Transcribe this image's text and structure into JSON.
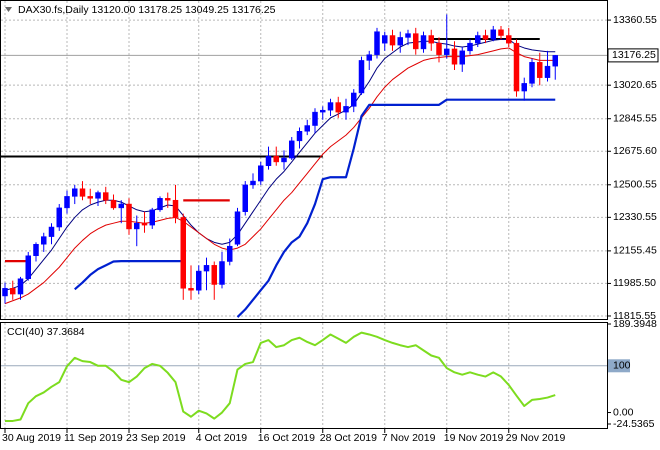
{
  "chart_data": {
    "type": "candlestick",
    "title": "DAX30.fs,Daily",
    "header_values": [
      "13120.00",
      "13178.25",
      "13049.25",
      "13176.25"
    ],
    "categories": [
      "30 Aug 2019",
      null,
      null,
      null,
      null,
      null,
      null,
      null,
      "11 Sep 2019",
      null,
      null,
      null,
      null,
      null,
      null,
      null,
      "23 Sep 2019",
      null,
      null,
      null,
      null,
      null,
      null,
      null,
      null,
      "4 Oct 2019",
      null,
      null,
      null,
      null,
      null,
      null,
      null,
      "16 Oct 2019",
      null,
      null,
      null,
      null,
      null,
      null,
      null,
      "28 Oct 2019",
      null,
      null,
      null,
      null,
      null,
      null,
      null,
      "7 Nov 2019",
      null,
      null,
      null,
      null,
      null,
      null,
      null,
      "19 Nov 2019",
      null,
      null,
      null,
      null,
      null,
      null,
      null,
      "29 Nov 2019",
      null,
      null,
      null,
      null,
      null,
      null
    ],
    "open": [
      11920,
      11960,
      11930,
      12010,
      12130,
      12190,
      12230,
      12280,
      12380,
      12440,
      12480,
      12440,
      12430,
      12460,
      12420,
      12380,
      12400,
      12270,
      12300,
      12290,
      12370,
      12430,
      12420,
      12330,
      11960,
      11950,
      12050,
      12080,
      11980,
      12100,
      12190,
      12360,
      12500,
      12520,
      12600,
      12650,
      12620,
      12640,
      12730,
      12780,
      12810,
      12880,
      12890,
      12930,
      12880,
      12910,
      12980,
      13150,
      13180,
      13240,
      13280,
      13230,
      13270,
      13290,
      13210,
      13280,
      13240,
      13180,
      13210,
      13130,
      13200,
      13240,
      13280,
      13260,
      13310,
      13280,
      13240,
      12990,
      13030,
      13140,
      13060,
      13120
    ],
    "high": [
      11990,
      12000,
      12020,
      12150,
      12200,
      12250,
      12300,
      12400,
      12470,
      12500,
      12520,
      12480,
      12470,
      12490,
      12450,
      12420,
      12430,
      12340,
      12360,
      12380,
      12440,
      12460,
      12500,
      12350,
      12080,
      12080,
      12120,
      12100,
      12150,
      12220,
      12380,
      12520,
      12560,
      12620,
      12700,
      12700,
      12680,
      12750,
      12800,
      12840,
      12900,
      12910,
      12950,
      12960,
      12950,
      13000,
      13170,
      13200,
      13320,
      13300,
      13310,
      13300,
      13310,
      13320,
      13300,
      13310,
      13270,
      13390,
      13250,
      13220,
      13260,
      13300,
      13310,
      13330,
      13330,
      13320,
      13260,
      13060,
      13160,
      13190,
      13200,
      13178.25
    ],
    "low": [
      11880,
      11900,
      11900,
      12000,
      12100,
      12150,
      12190,
      12260,
      12350,
      12400,
      12420,
      12400,
      12390,
      12400,
      12370,
      12300,
      12240,
      12180,
      12250,
      12270,
      12360,
      12380,
      12300,
      11900,
      11900,
      11930,
      11950,
      11900,
      11960,
      12080,
      12180,
      12340,
      12480,
      12500,
      12580,
      12600,
      12580,
      12630,
      12690,
      12760,
      12770,
      12840,
      12860,
      12850,
      12840,
      12880,
      12970,
      13100,
      13160,
      13200,
      13200,
      13190,
      13230,
      13180,
      13190,
      13200,
      13140,
      13160,
      13100,
      13090,
      13180,
      13220,
      13240,
      13250,
      13260,
      13220,
      12960,
      12940,
      13010,
      13020,
      13040,
      13049.25
    ],
    "close": [
      11960,
      11930,
      12010,
      12130,
      12190,
      12230,
      12280,
      12380,
      12440,
      12480,
      12440,
      12430,
      12460,
      12420,
      12380,
      12400,
      12270,
      12300,
      12290,
      12370,
      12430,
      12420,
      12330,
      11960,
      11950,
      12050,
      12080,
      11980,
      12100,
      12180,
      12360,
      12500,
      12520,
      12600,
      12650,
      12620,
      12640,
      12730,
      12780,
      12810,
      12880,
      12890,
      12930,
      12880,
      12910,
      12980,
      13150,
      13180,
      13300,
      13280,
      13230,
      13270,
      13290,
      13210,
      13280,
      13240,
      13180,
      13210,
      13130,
      13200,
      13240,
      13280,
      13260,
      13310,
      13280,
      13240,
      12990,
      13030,
      13140,
      13060,
      13120,
      13176.25
    ],
    "up_color": "#0000ff",
    "down_color": "#ff0000",
    "ylim": [
      11805,
      13455
    ],
    "yticks": [
      13360.55,
      13020.65,
      12845.55,
      {
        "value": 12675.6,
        "label": "12675.60"
      },
      12500.55,
      12330.55,
      12155.45,
      {
        "value": 11985.5,
        "label": "11985.50"
      },
      11815.55
    ],
    "grid": true,
    "last_price": 13176.25,
    "overlays": [
      {
        "color": "#000080",
        "style": "thin",
        "values": [
          11950,
          11960,
          11975,
          12010,
          12060,
          12110,
          12160,
          12220,
          12280,
          12330,
          12370,
          12395,
          12410,
          12420,
          12420,
          12410,
          12390,
          12370,
          12360,
          12365,
          12380,
          12395,
          12390,
          12340,
          12290,
          12250,
          12220,
          12200,
          12190,
          12200,
          12240,
          12300,
          12360,
          12420,
          12480,
          12530,
          12570,
          12620,
          12670,
          12720,
          12770,
          12810,
          12850,
          12870,
          12890,
          12920,
          12980,
          13040,
          13110,
          13160,
          13190,
          13220,
          13240,
          13245,
          13250,
          13250,
          13240,
          13235,
          13225,
          13220,
          13225,
          13235,
          13245,
          13255,
          13260,
          13260,
          13230,
          13215,
          13205,
          13200,
          13195,
          13195
        ]
      },
      {
        "color": "#e00000",
        "style": "thin",
        "values": [
          11880,
          11895,
          11910,
          11930,
          11960,
          11990,
          12030,
          12070,
          12120,
          12170,
          12210,
          12245,
          12270,
          12290,
          12300,
          12310,
          12310,
          12305,
          12300,
          12305,
          12315,
          12325,
          12330,
          12310,
          12280,
          12250,
          12220,
          12190,
          12170,
          12160,
          12170,
          12190,
          12230,
          12270,
          12320,
          12370,
          12420,
          12460,
          12510,
          12560,
          12610,
          12660,
          12700,
          12730,
          12760,
          12800,
          12850,
          12900,
          12960,
          13010,
          13050,
          13080,
          13110,
          13130,
          13150,
          13160,
          13165,
          13170,
          13170,
          13170,
          13175,
          13180,
          13190,
          13200,
          13210,
          13215,
          13190,
          13170,
          13160,
          13150,
          13150,
          13150
        ]
      },
      {
        "color": "#0020d0",
        "style": "thick",
        "values": [
          null,
          null,
          null,
          null,
          null,
          null,
          null,
          null,
          null,
          11955,
          11990,
          12030,
          12060,
          12080,
          12100,
          12102,
          12102,
          12102,
          12102,
          12102,
          12102,
          12102,
          12102,
          12102,
          null,
          null,
          null,
          null,
          null,
          null,
          11810,
          11850,
          11900,
          11950,
          12000,
          12080,
          12150,
          12200,
          12230,
          12300,
          12400,
          12530,
          12540,
          12540,
          12540,
          12690,
          12860,
          12918,
          12918,
          12918,
          12918,
          12918,
          12918,
          12918,
          12918,
          12918,
          12918,
          12945,
          12945,
          12945,
          12945,
          12945,
          12945,
          12945,
          12945,
          12945,
          12945,
          12945,
          12945,
          12945,
          12945,
          12945
        ]
      },
      {
        "color": "#e00000",
        "style": "thick",
        "values": [
          12102,
          12102,
          12102,
          12102,
          null,
          null,
          null,
          null,
          null,
          null,
          null,
          null,
          null,
          null,
          null,
          null,
          null,
          null,
          null,
          null,
          null,
          null,
          null,
          12419,
          12419,
          12419,
          12419,
          12419,
          12419,
          12419,
          null,
          null,
          null,
          null,
          null,
          null,
          null,
          null,
          null,
          null,
          null,
          null,
          null,
          null,
          null,
          null,
          null,
          null,
          null,
          null,
          null,
          null,
          null,
          null,
          null,
          null,
          null,
          null,
          null,
          null,
          null,
          null,
          null,
          null,
          null,
          null,
          null,
          null,
          null,
          null,
          null,
          null
        ]
      }
    ],
    "levels": [
      {
        "color": "#000000",
        "value": 12648,
        "span": [
          0,
          41
        ]
      },
      {
        "color": "#000000",
        "value": 13262,
        "span": [
          55,
          69
        ]
      }
    ],
    "indicator": {
      "type": "line",
      "title": "CCI(40)",
      "color": "#7ddc1f",
      "ylim": [
        -24.5365,
        189.3948
      ],
      "yticks": [
        189.3948,
        100,
        {
          "value": 0,
          "label": "0.00"
        },
        -24.5365
      ],
      "level": 100,
      "values": [
        -18,
        -18,
        -15,
        20,
        35,
        43,
        55,
        65,
        99,
        117,
        110,
        108,
        100,
        100,
        88,
        70,
        65,
        77,
        95,
        104,
        100,
        85,
        65,
        2,
        -9,
        4,
        -2,
        -13,
        0,
        20,
        92,
        104,
        108,
        149,
        155,
        140,
        144,
        155,
        160,
        151,
        144,
        155,
        167,
        158,
        149,
        162,
        171,
        167,
        162,
        155,
        149,
        144,
        140,
        144,
        133,
        122,
        117,
        95,
        86,
        81,
        86,
        81,
        77,
        86,
        77,
        59,
        36,
        14,
        27,
        29,
        32,
        37.3684
      ]
    }
  }
}
